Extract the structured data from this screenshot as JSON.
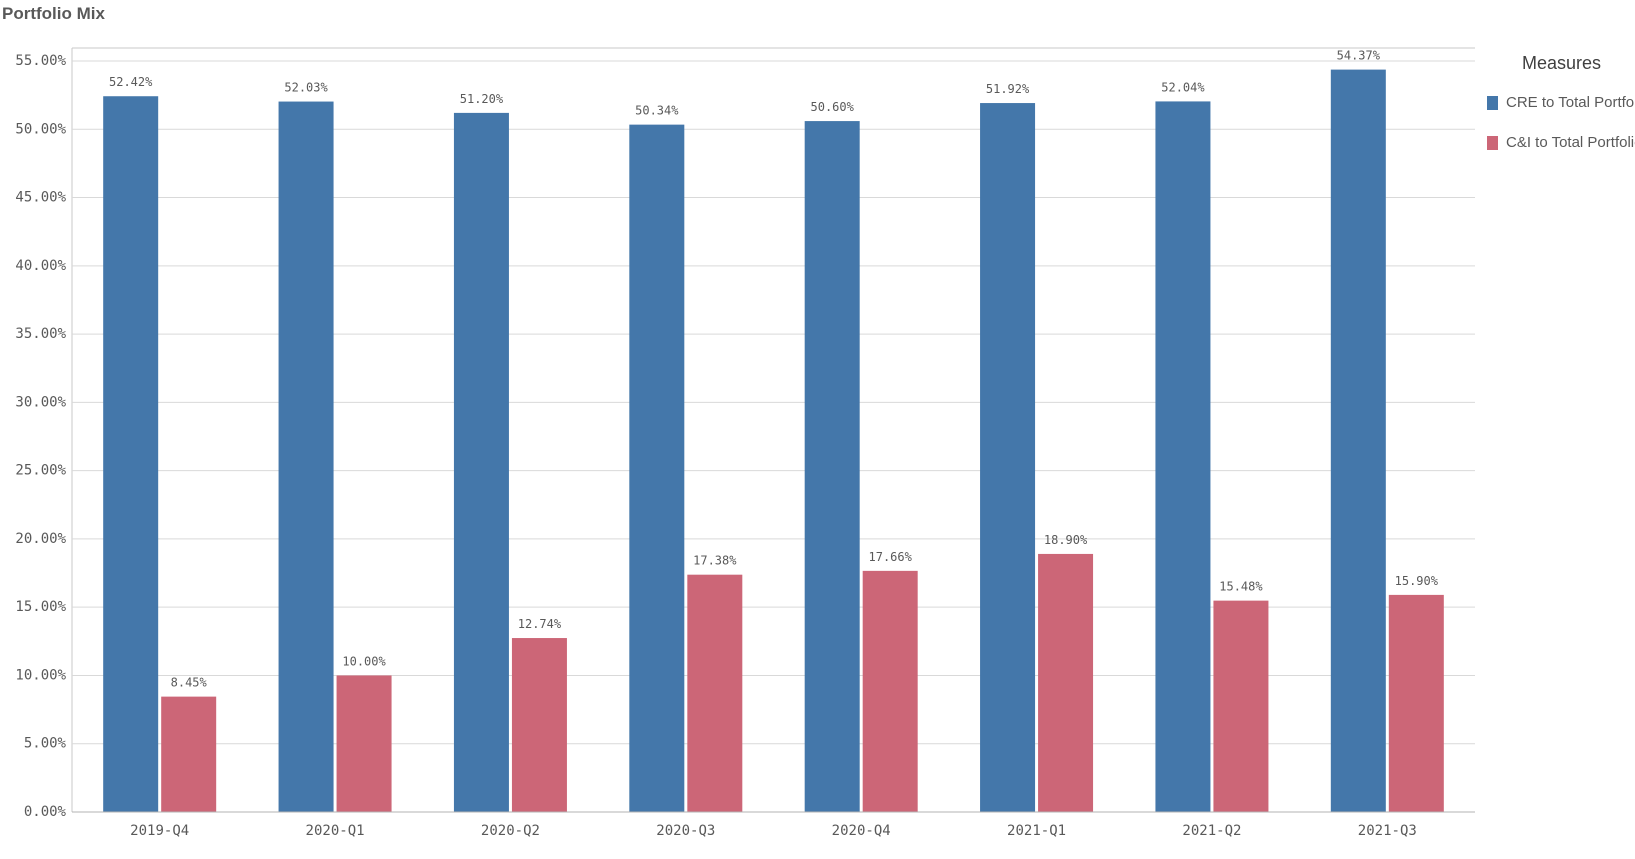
{
  "chart_data": {
    "type": "bar",
    "title": "Portfolio Mix",
    "categories": [
      "2019-Q4",
      "2020-Q1",
      "2020-Q2",
      "2020-Q3",
      "2020-Q4",
      "2021-Q1",
      "2021-Q2",
      "2021-Q3"
    ],
    "series": [
      {
        "name": "CRE to Total Portfolio",
        "color": "#4477aa",
        "values": [
          52.42,
          52.03,
          51.2,
          50.34,
          50.6,
          51.92,
          52.04,
          54.37
        ],
        "labels": [
          "52.42%",
          "52.03%",
          "51.20%",
          "50.34%",
          "50.60%",
          "51.92%",
          "52.04%",
          "54.37%"
        ]
      },
      {
        "name": "C&I to Total Portfolio",
        "color": "#cc6677",
        "values": [
          8.45,
          10.0,
          12.74,
          17.38,
          17.66,
          18.9,
          15.48,
          15.9
        ],
        "labels": [
          "8.45%",
          "10.00%",
          "12.74%",
          "17.38%",
          "17.66%",
          "18.90%",
          "15.48%",
          "15.90%"
        ]
      }
    ],
    "ylim": [
      0,
      55
    ],
    "yticks": [
      0,
      5,
      10,
      15,
      20,
      25,
      30,
      35,
      40,
      45,
      50,
      55
    ],
    "ytick_labels": [
      "0.00%",
      "5.00%",
      "10.00%",
      "15.00%",
      "20.00%",
      "25.00%",
      "30.00%",
      "35.00%",
      "40.00%",
      "45.00%",
      "50.00%",
      "55.00%"
    ],
    "legend": {
      "title": "Measures",
      "placement": "top-right"
    },
    "grid": true,
    "xlabel": "",
    "ylabel": ""
  }
}
